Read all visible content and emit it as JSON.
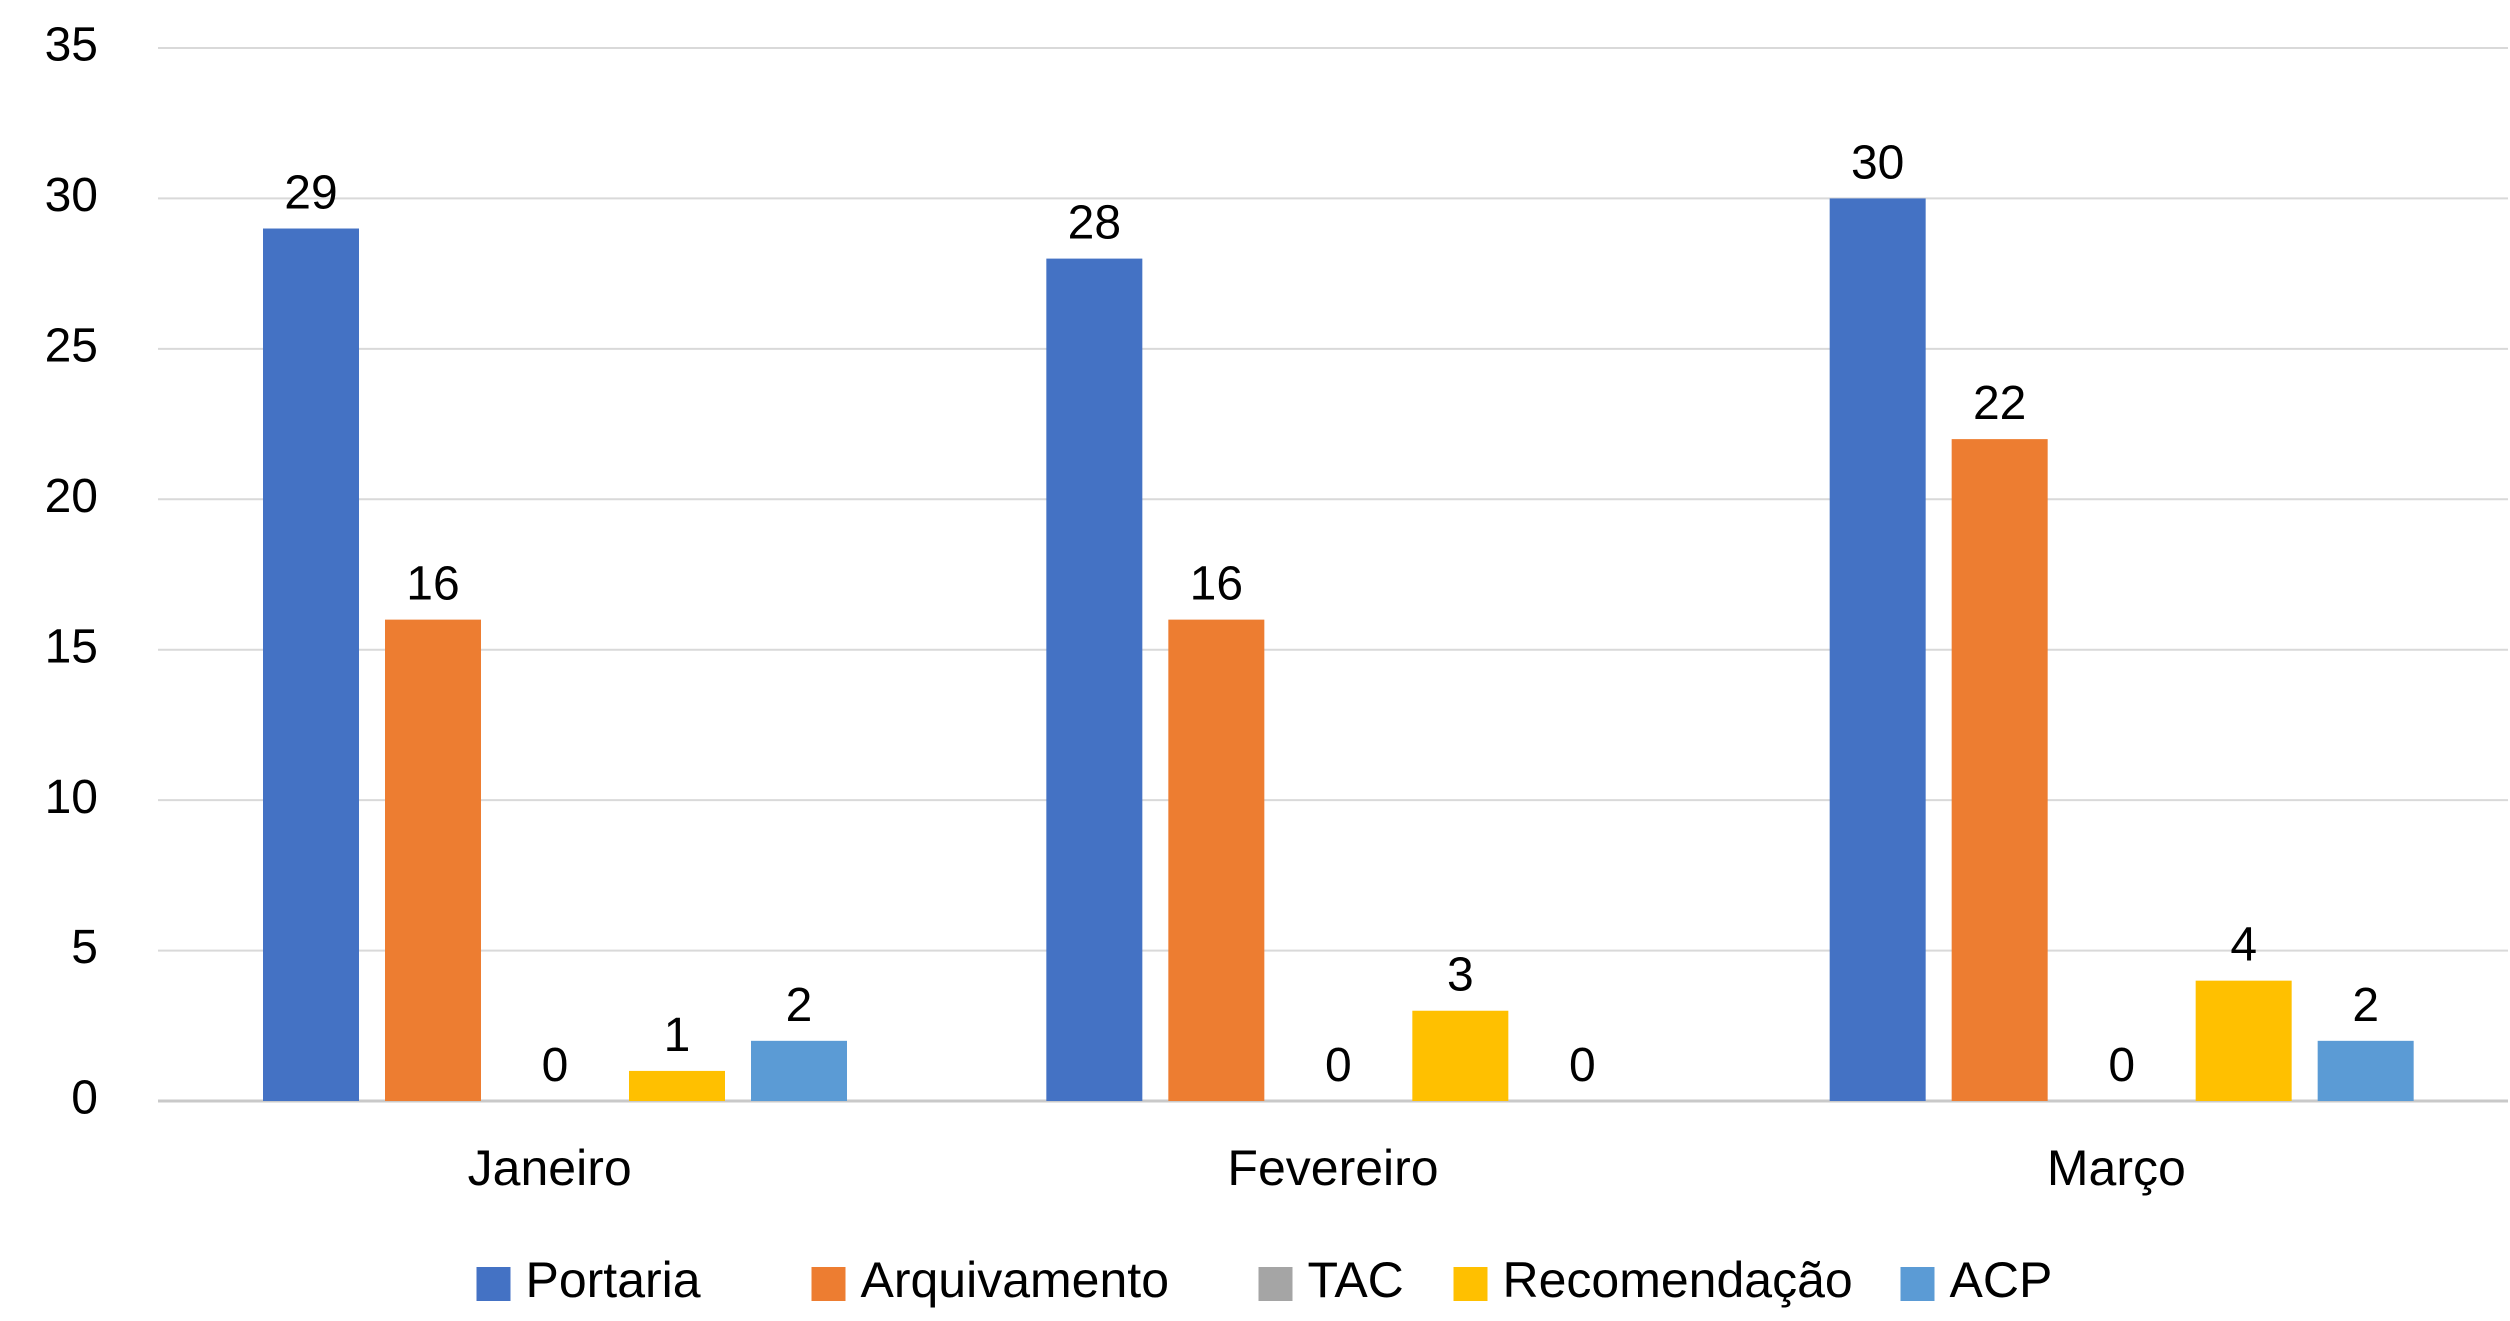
{
  "chart_data": {
    "type": "bar",
    "categories": [
      "Janeiro",
      "Fevereiro",
      "Março"
    ],
    "series": [
      {
        "name": "Portaria",
        "values": [
          29,
          28,
          30
        ],
        "color": "#4472C4"
      },
      {
        "name": "Arquivamento",
        "values": [
          16,
          16,
          22
        ],
        "color": "#ED7D31"
      },
      {
        "name": "TAC",
        "values": [
          0,
          0,
          0
        ],
        "color": "#A5A5A5"
      },
      {
        "name": "Recomendação",
        "values": [
          1,
          3,
          4
        ],
        "color": "#FFC000"
      },
      {
        "name": "ACP",
        "values": [
          2,
          0,
          2
        ],
        "color": "#5B9BD5"
      }
    ],
    "ylim": [
      0,
      35
    ],
    "yticks": [
      0,
      5,
      10,
      15,
      20,
      25,
      30,
      35
    ],
    "grid": true,
    "legend_position": "bottom",
    "title": "",
    "xlabel": "",
    "ylabel": ""
  }
}
